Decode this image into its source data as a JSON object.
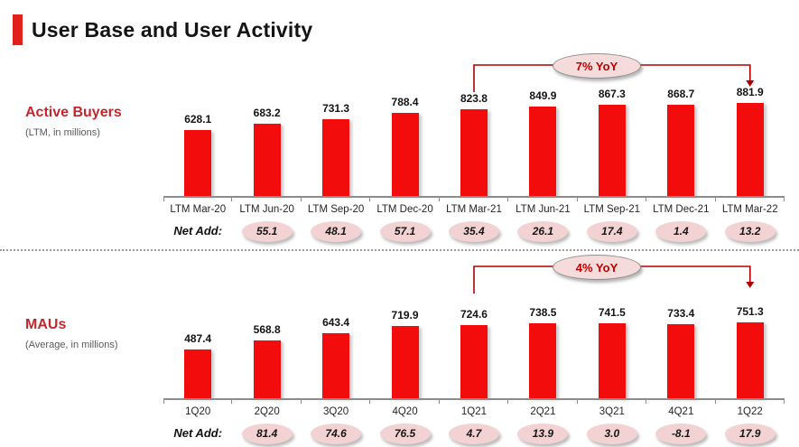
{
  "header": {
    "title": "User Base and User Activity"
  },
  "colors": {
    "bar_red": "#f20c0c",
    "accent_red": "#c2272d",
    "title_accent_red": "#e2211c",
    "bracket_red": "#b00000",
    "net_badge_pink": "#f2d2d3",
    "yoy_badge_pink": "#f6dbdb"
  },
  "chart_data": [
    {
      "type": "bar",
      "title": "Active Buyers",
      "subtitle": "(LTM, in millions)",
      "categories": [
        "LTM Mar-20",
        "LTM Jun-20",
        "LTM Sep-20",
        "LTM Dec-20",
        "LTM Mar-21",
        "LTM Jun-21",
        "LTM Sep-21",
        "LTM Dec-21",
        "LTM Mar-22"
      ],
      "values": [
        628.1,
        683.2,
        731.3,
        788.4,
        823.8,
        849.9,
        867.3,
        868.7,
        881.9
      ],
      "net_add_label": "Net Add:",
      "net_add": [
        null,
        55.1,
        48.1,
        57.1,
        35.4,
        26.1,
        17.4,
        1.4,
        13.2
      ],
      "annotation": {
        "label": "7% YoY",
        "from": "LTM Mar-21",
        "to": "LTM Mar-22",
        "from_index": 4,
        "to_index": 8
      },
      "xlabel": "",
      "ylabel": "",
      "ylim": [
        0,
        900
      ],
      "grid": false,
      "legend": "none"
    },
    {
      "type": "bar",
      "title": "MAUs",
      "subtitle": "(Average, in millions)",
      "categories": [
        "1Q20",
        "2Q20",
        "3Q20",
        "4Q20",
        "1Q21",
        "2Q21",
        "3Q21",
        "4Q21",
        "1Q22"
      ],
      "values": [
        487.4,
        568.8,
        643.4,
        719.9,
        724.6,
        738.5,
        741.5,
        733.4,
        751.3
      ],
      "net_add_label": "Net Add:",
      "net_add": [
        null,
        81.4,
        74.6,
        76.5,
        4.7,
        13.9,
        3.0,
        -8.1,
        17.9
      ],
      "annotation": {
        "label": "4% YoY",
        "from": "1Q21",
        "to": "1Q22",
        "from_index": 4,
        "to_index": 8
      },
      "xlabel": "",
      "ylabel": "",
      "ylim": [
        0,
        800
      ],
      "grid": false,
      "legend": "none"
    }
  ]
}
